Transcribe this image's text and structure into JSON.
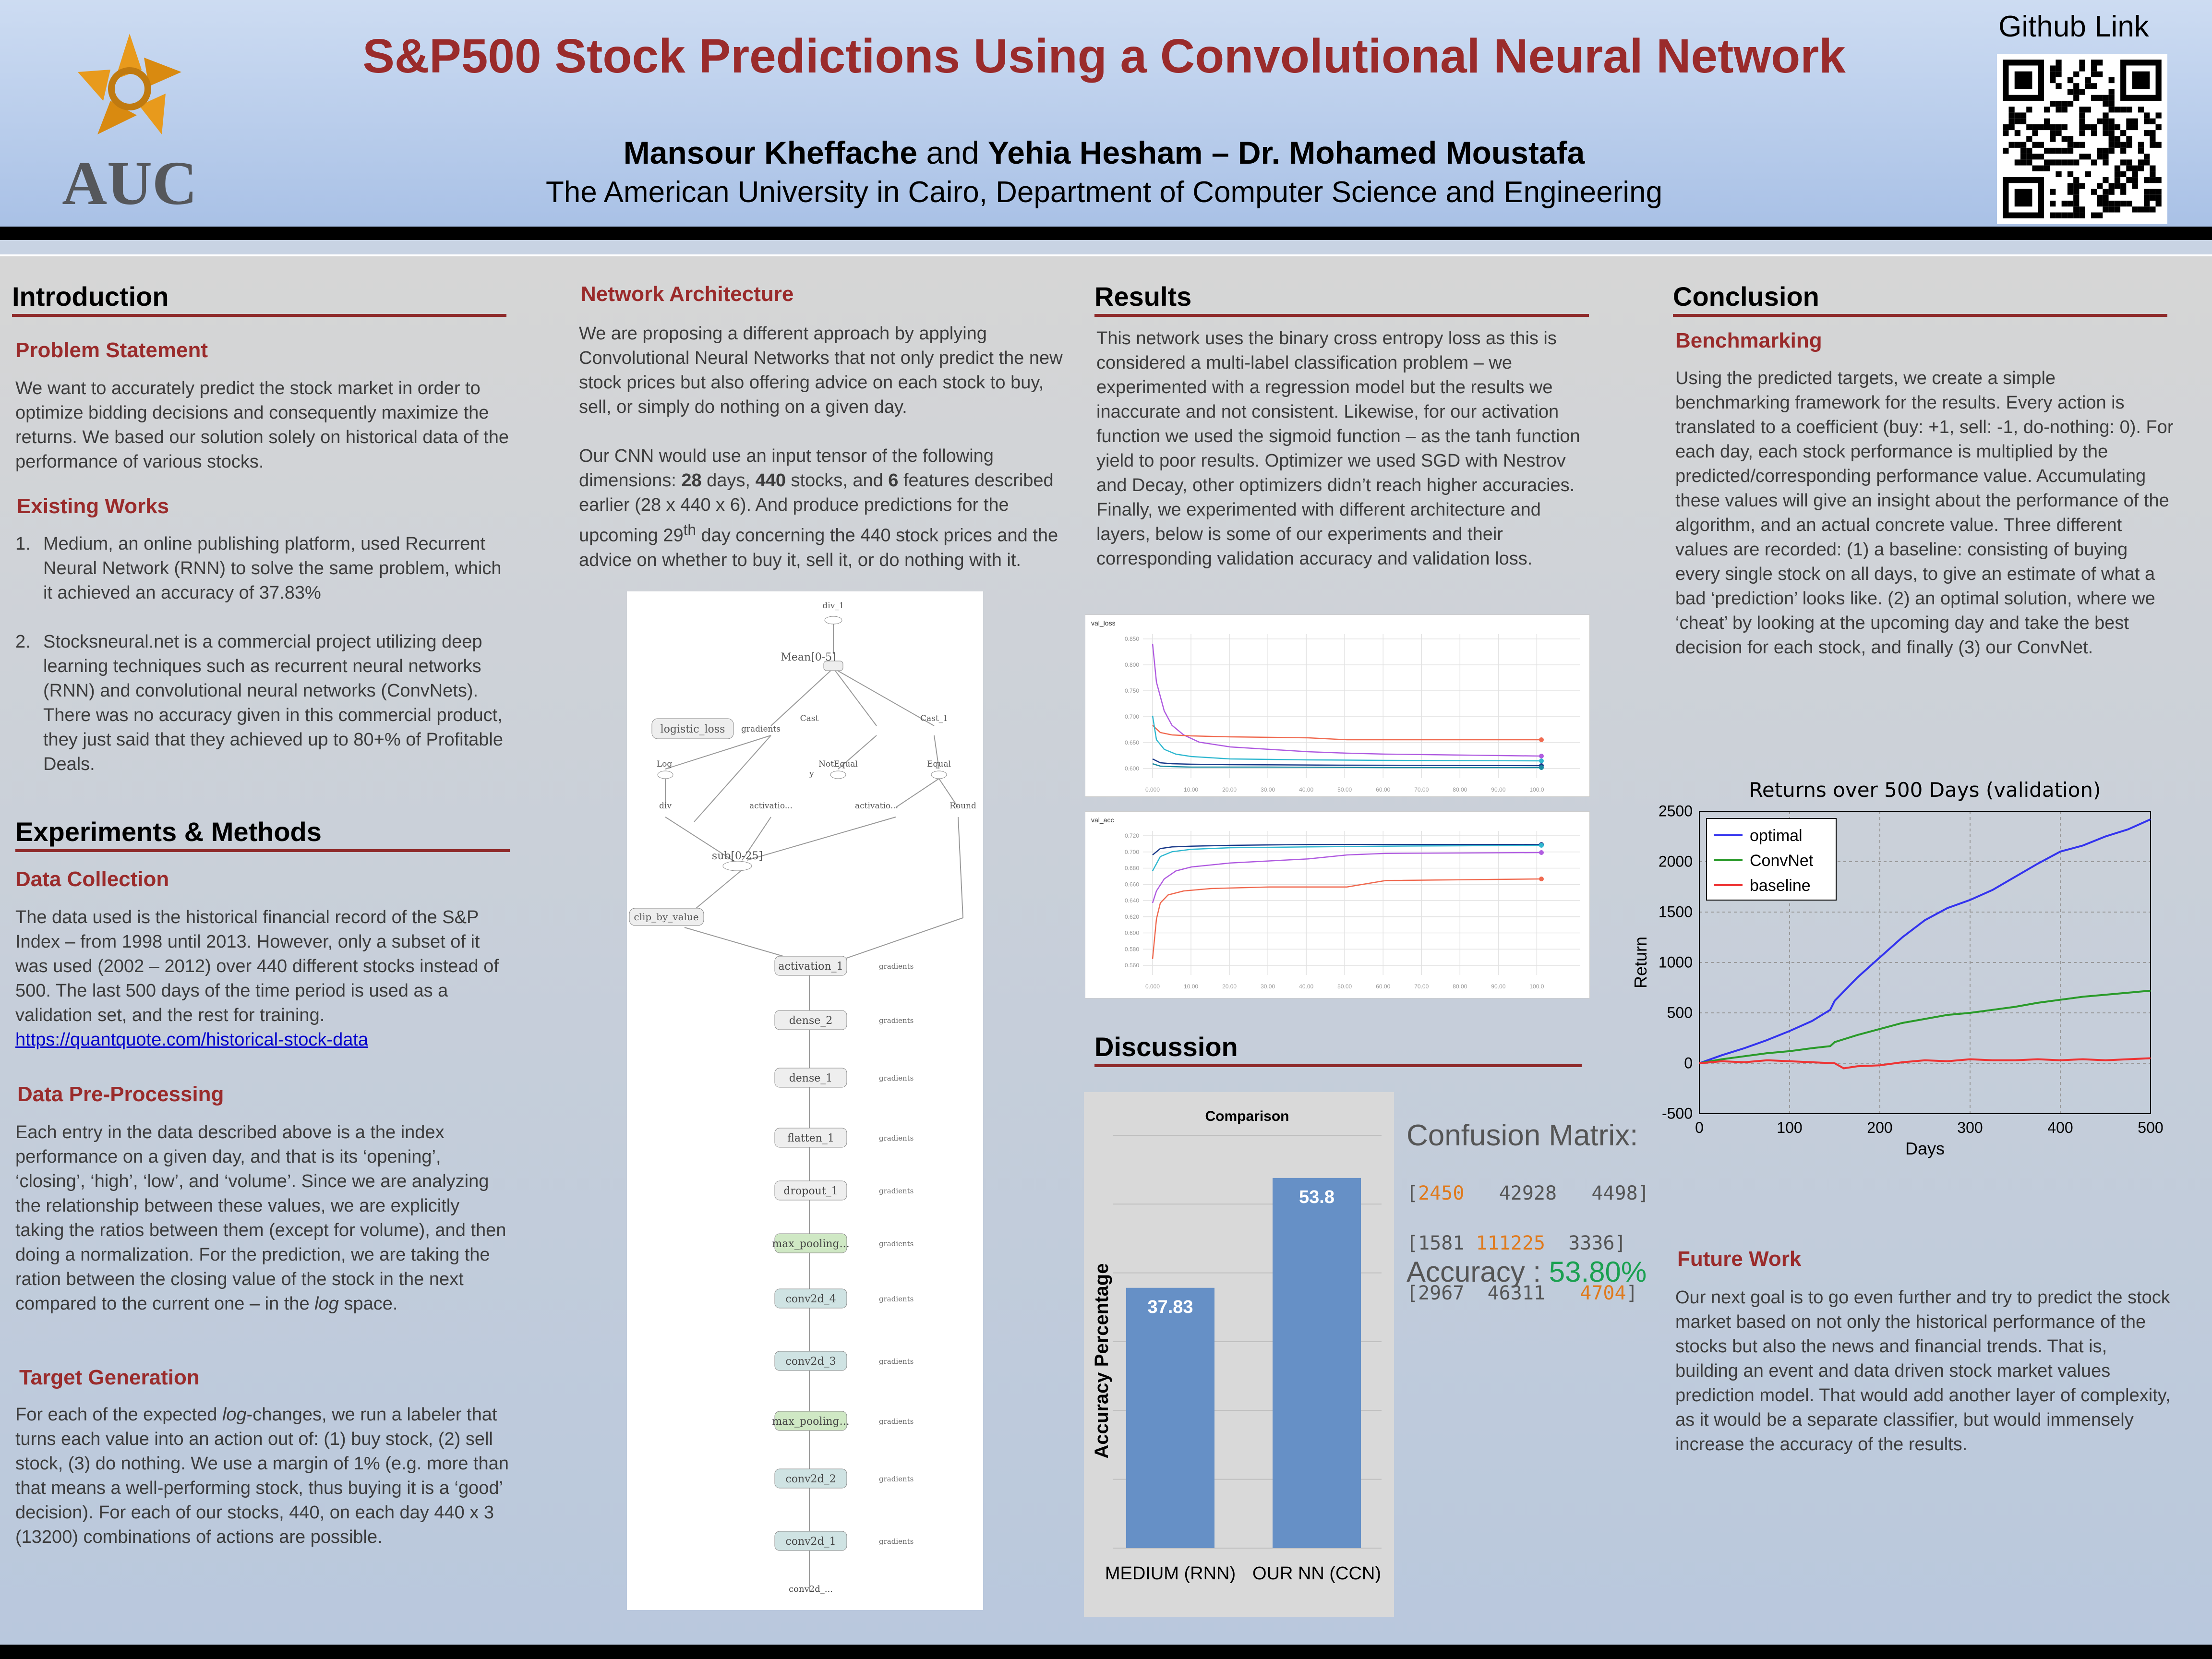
{
  "header": {
    "title": "S&P500 Stock Predictions Using a Convolutional Neural Network",
    "author1": "Mansour Kheffache",
    "and": " and ",
    "author2": "Yehia Hesham – Dr. Mohamed Moustafa",
    "affiliation": "The American University in Cairo, Department of Computer Science and Engineering",
    "github_label": "Github Link",
    "logo_text": "AUC"
  },
  "intro": {
    "heading": "Introduction",
    "problem_heading": "Problem Statement",
    "problem_text": "We want to accurately predict the stock market in order to optimize bidding decisions and consequently maximize the returns. We based our solution solely on historical data of the performance of various stocks.",
    "existing_heading": "Existing Works",
    "existing_items": [
      {
        "num": "1.",
        "text": "Medium, an online publishing platform, used Recurrent Neural Network (RNN) to solve the same problem, which it achieved an accuracy of 37.83%"
      },
      {
        "num": "2.",
        "text": "Stocksneural.net is a commercial project utilizing deep learning techniques such as recurrent neural networks (RNN) and convolutional neural networks (ConvNets). There was no accuracy given in this commercial product, they just said that they achieved up to 80+% of Profitable Deals."
      }
    ]
  },
  "methods": {
    "heading": "Experiments & Methods",
    "collection_heading": "Data Collection",
    "collection_text": "The data used is the historical financial record of the S&P Index – from 1998 until 2013. However, only a subset of it was used (2002 – 2012) over 440 different stocks instead of 500. The last 500 days of the time period is used as a validation set, and the rest for training.",
    "collection_link": "https://quantquote.com/historical-stock-data",
    "preproc_heading": "Data Pre-Processing",
    "preproc_text_a": "Each entry in the data described above is a the index performance on a given day, and that is its ‘opening’, ‘closing’, ‘high’, ‘low’, and ‘volume’. Since we are analyzing the relationship between these values, we are explicitly taking the ratios between them (except for volume), and then doing a normalization. For the prediction, we are taking the ration between the closing value of the stock in the next compared to the current one – in the ",
    "preproc_text_i": "log",
    "preproc_text_b": " space.",
    "target_heading": "Target Generation",
    "target_text_a": "For each of the expected ",
    "target_text_i": "log",
    "target_text_b": "-changes, we run a labeler that turns each value into an action out of: (1) buy stock, (2) sell stock, (3) do nothing. We use a margin of 1% (e.g. more than that means a well-performing stock, thus buying it is a ‘good’ decision). For each of our stocks, 440, on each day 440 x 3 (13200) combinations of actions are possible."
  },
  "network": {
    "heading": "Network Architecture",
    "para1": "We are proposing a different approach by applying Convolutional Neural Networks that not only predict the new stock prices but also offering advice on each stock to buy, sell, or simply do nothing on a given day.",
    "para2_a": "Our CNN would use an input tensor of the following dimensions: ",
    "para2_days": "28",
    "para2_b": " days, ",
    "para2_stocks": "440",
    "para2_c": " stocks, and ",
    "para2_feat": "6",
    "para2_d": " features described earlier (28 x 440 x 6). And produce predictions for the upcoming 29",
    "para2_sup": "th",
    "para2_e": " day concerning the 440 stock prices and the advice on whether to buy it, sell it, or do nothing with it.",
    "graph_nodes": {
      "div1": "div_1",
      "mean": "Mean[0-5]",
      "logistic": "logistic_loss",
      "cast": "Cast",
      "cast1": "Cast_1",
      "log": "Log",
      "notequal": "NotEqual",
      "equal": "Equal",
      "div": "div",
      "activ_a": "activatio...",
      "activ_b": "activatio...",
      "round": "Round",
      "sub": "sub[0-25]",
      "clip": "clip_by_value",
      "activation1": "activation_1",
      "dense2": "dense_2",
      "dense1": "dense_1",
      "flatten1": "flatten_1",
      "dropout1": "dropout_1",
      "maxpool_a": "max_pooling...",
      "conv2d4": "conv2d_4",
      "conv2d3": "conv2d_3",
      "maxpool_b": "max_pooling...",
      "conv2d2": "conv2d_2",
      "conv2d1": "conv2d_1",
      "conv2d_in": "conv2d_...",
      "gradients": "gradients",
      "y": "y"
    }
  },
  "results": {
    "heading": "Results",
    "text": "This network uses the binary cross entropy loss as this is considered a multi-label classification problem – we experimented with a regression model but the results we inaccurate and not consistent. Likewise, for our activation function we used the sigmoid function – as the tanh function yield to poor results. Optimizer we used SGD with Nestrov and Decay, other optimizers didn’t reach higher accuracies. Finally, we experimented with different architecture  and layers, below is some of our experiments and their corresponding validation accuracy and validation loss.",
    "loss_title": "val_loss",
    "acc_title": "val_acc"
  },
  "discussion": {
    "heading": "Discussion",
    "cm_title": "Confusion Matrix:",
    "cm_row1": [
      "2450",
      "42928",
      "4498"
    ],
    "cm_row2": [
      "1581",
      "111225",
      "3336"
    ],
    "cm_row3": [
      "2967",
      "46311",
      "4704"
    ],
    "accuracy_label": "Accuracy : ",
    "accuracy_value": "53.80%"
  },
  "conclusion": {
    "heading": "Conclusion",
    "bench_heading": "Benchmarking",
    "bench_text": "Using the predicted targets, we create a simple benchmarking framework for the results. Every action is translated to a coefficient (buy: +1, sell: -1, do-nothing: 0). For each day, each stock performance is multiplied by the predicted/corresponding performance value. Accumulating these values will give an insight about the performance of the algorithm, and an actual concrete value. Three different values are recorded: (1) a baseline: consisting of buying every single stock on all days, to give an estimate of what a bad ‘prediction’ looks like. (2) an optimal solution, where we ‘cheat’ by looking at the upcoming day and take the best decision for each stock, and finally (3) our ConvNet.",
    "future_heading": "Future Work",
    "future_text": "Our next goal is to go even further and try to predict the stock market based on not only the historical performance of the stocks but also the news and financial trends. That is, building an event and data driven stock market values prediction model. That would add another layer of complexity, as it would be a separate classifier, but would immensely increase the accuracy of the results."
  },
  "chart_data": [
    {
      "type": "bar",
      "title": "Comparison",
      "ylabel": "Accuracy Percentage",
      "categories": [
        "MEDIUM (RNN)",
        "OUR NN (CCN)"
      ],
      "values": [
        37.83,
        53.8
      ],
      "value_labels": [
        "37.83",
        "53.8"
      ],
      "ylim": [
        0,
        60
      ],
      "grid": true,
      "colors": {
        "bar": "#6690c6",
        "background": "#d9d9d9"
      }
    },
    {
      "type": "line",
      "title": "Returns over 500 Days (validation)",
      "xlabel": "Days",
      "ylabel": "Return",
      "xlim": [
        0,
        500
      ],
      "ylim": [
        -500,
        2500
      ],
      "xticks": [
        0,
        100,
        200,
        300,
        400,
        500
      ],
      "yticks": [
        -500,
        0,
        500,
        1000,
        1500,
        2000,
        2500
      ],
      "grid": true,
      "legend": "top-left",
      "series": [
        {
          "name": "optimal",
          "color": "#3333ee",
          "x": [
            0,
            25,
            50,
            75,
            100,
            125,
            145,
            150,
            175,
            200,
            225,
            250,
            275,
            300,
            325,
            350,
            375,
            400,
            425,
            450,
            475,
            500
          ],
          "y": [
            0,
            80,
            150,
            230,
            320,
            420,
            530,
            620,
            850,
            1050,
            1250,
            1420,
            1540,
            1620,
            1720,
            1850,
            1980,
            2100,
            2160,
            2250,
            2320,
            2420
          ]
        },
        {
          "name": "ConvNet",
          "color": "#2a9a2a",
          "x": [
            0,
            25,
            50,
            75,
            100,
            125,
            145,
            150,
            175,
            200,
            225,
            250,
            275,
            300,
            325,
            350,
            375,
            400,
            425,
            450,
            475,
            500
          ],
          "y": [
            0,
            40,
            70,
            100,
            120,
            150,
            170,
            210,
            280,
            340,
            400,
            440,
            480,
            500,
            530,
            560,
            600,
            630,
            660,
            680,
            700,
            720
          ]
        },
        {
          "name": "baseline",
          "color": "#ee3333",
          "x": [
            0,
            25,
            50,
            75,
            100,
            125,
            150,
            160,
            175,
            200,
            225,
            250,
            275,
            300,
            325,
            350,
            375,
            400,
            425,
            450,
            475,
            500
          ],
          "y": [
            0,
            20,
            10,
            30,
            20,
            10,
            0,
            -50,
            -30,
            -20,
            10,
            30,
            20,
            40,
            30,
            30,
            40,
            30,
            40,
            30,
            40,
            50
          ]
        }
      ]
    },
    {
      "type": "line",
      "title": "val_loss",
      "xticks": [
        "0.000",
        "10.00",
        "20.00",
        "30.00",
        "40.00",
        "50.00",
        "60.00",
        "70.00",
        "80.00",
        "90.00",
        "100.0"
      ],
      "yticks": [
        "0.600",
        "0.650",
        "0.700",
        "0.750",
        "0.800",
        "0.850"
      ],
      "xlim": [
        0,
        110
      ],
      "ylim": [
        0.58,
        0.88
      ],
      "grid": true,
      "series": [
        {
          "color": "#b05ce0",
          "x": [
            0,
            1,
            3,
            5,
            8,
            12,
            20,
            30,
            40,
            50,
            60,
            80,
            100
          ],
          "y": [
            0.86,
            0.78,
            0.72,
            0.69,
            0.67,
            0.655,
            0.645,
            0.64,
            0.635,
            0.632,
            0.63,
            0.628,
            0.626
          ]
        },
        {
          "color": "#f06a50",
          "x": [
            0,
            2,
            5,
            10,
            20,
            40,
            50,
            60,
            80,
            100
          ],
          "y": [
            0.69,
            0.675,
            0.67,
            0.668,
            0.666,
            0.664,
            0.66,
            0.66,
            0.66,
            0.66
          ]
        },
        {
          "color": "#30b8d0",
          "x": [
            0,
            1,
            3,
            6,
            10,
            20,
            40,
            60,
            100
          ],
          "y": [
            0.71,
            0.66,
            0.64,
            0.63,
            0.625,
            0.62,
            0.618,
            0.617,
            0.616
          ]
        },
        {
          "color": "#1a3a8a",
          "x": [
            0,
            2,
            5,
            10,
            20,
            50,
            100
          ],
          "y": [
            0.62,
            0.612,
            0.61,
            0.609,
            0.608,
            0.607,
            0.606
          ]
        },
        {
          "color": "#1a8aa0",
          "x": [
            0,
            2,
            5,
            10,
            30,
            60,
            100
          ],
          "y": [
            0.61,
            0.605,
            0.604,
            0.603,
            0.603,
            0.602,
            0.602
          ]
        }
      ]
    },
    {
      "type": "line",
      "title": "val_acc",
      "xticks": [
        "0.000",
        "10.00",
        "20.00",
        "30.00",
        "40.00",
        "50.00",
        "60.00",
        "70.00",
        "80.00",
        "90.00",
        "100.0"
      ],
      "yticks": [
        "0.560",
        "0.580",
        "0.600",
        "0.620",
        "0.640",
        "0.660",
        "0.680",
        "0.700",
        "0.720"
      ],
      "xlim": [
        0,
        110
      ],
      "ylim": [
        0.55,
        0.73
      ],
      "grid": true,
      "series": [
        {
          "color": "#1a3a8a",
          "x": [
            0,
            2,
            5,
            10,
            20,
            40,
            60,
            100
          ],
          "y": [
            0.7,
            0.708,
            0.71,
            0.711,
            0.712,
            0.713,
            0.713,
            0.713
          ]
        },
        {
          "color": "#30b8d0",
          "x": [
            0,
            2,
            5,
            10,
            20,
            40,
            60,
            100
          ],
          "y": [
            0.68,
            0.698,
            0.704,
            0.707,
            0.709,
            0.71,
            0.711,
            0.712
          ]
        },
        {
          "color": "#b05ce0",
          "x": [
            0,
            1,
            3,
            6,
            10,
            20,
            40,
            50,
            60,
            100
          ],
          "y": [
            0.64,
            0.655,
            0.67,
            0.68,
            0.685,
            0.69,
            0.695,
            0.7,
            0.702,
            0.703
          ]
        },
        {
          "color": "#f06a50",
          "x": [
            0,
            1,
            2,
            4,
            8,
            15,
            30,
            50,
            60,
            100
          ],
          "y": [
            0.57,
            0.62,
            0.64,
            0.65,
            0.655,
            0.658,
            0.66,
            0.66,
            0.668,
            0.67
          ]
        }
      ]
    }
  ]
}
